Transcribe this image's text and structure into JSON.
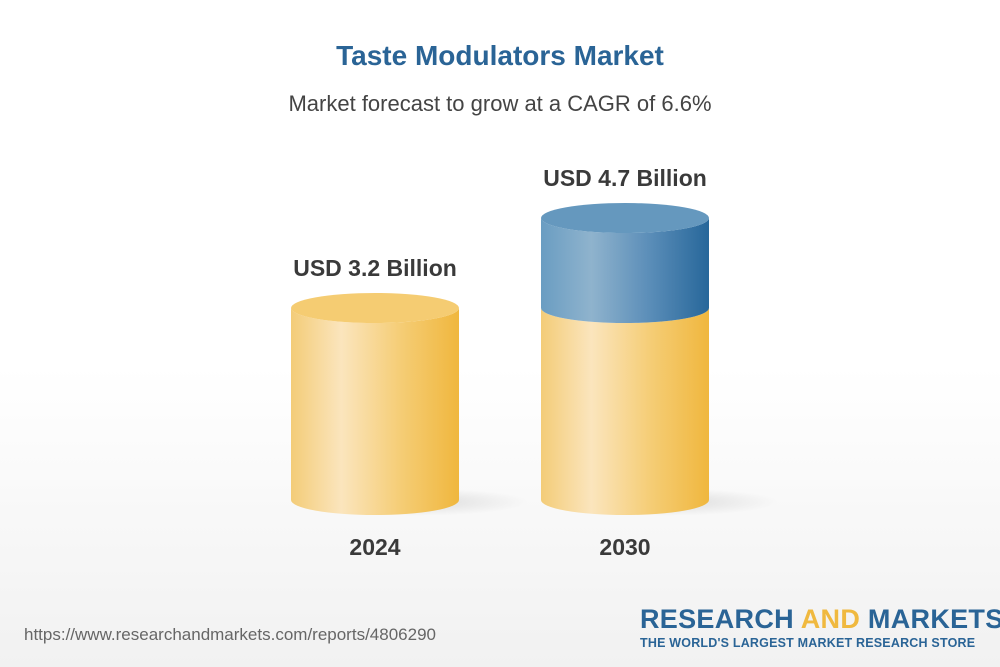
{
  "title": "Taste Modulators Market",
  "subtitle": "Market forecast to grow at a CAGR of 6.6%",
  "chart_data": {
    "type": "bar",
    "style": "3d-cylinder",
    "title": "Taste Modulators Market",
    "subtitle": "Market forecast to grow at a CAGR of 6.6%",
    "categories": [
      "2024",
      "2030"
    ],
    "values": [
      3.2,
      4.7
    ],
    "unit": "USD Billion",
    "data_labels": [
      "USD 3.2 Billion",
      "USD 4.7 Billion"
    ],
    "cagr_percent": 6.6,
    "colors": {
      "base": "#f3c563",
      "growth": "#2a6496"
    }
  },
  "footer": {
    "url": "https://www.researchandmarkets.com/reports/4806290",
    "logo_part1": "RESEARCH ",
    "logo_part2": "AND",
    "logo_part3": " MARKETS",
    "tagline": "THE WORLD'S LARGEST MARKET RESEARCH STORE"
  }
}
